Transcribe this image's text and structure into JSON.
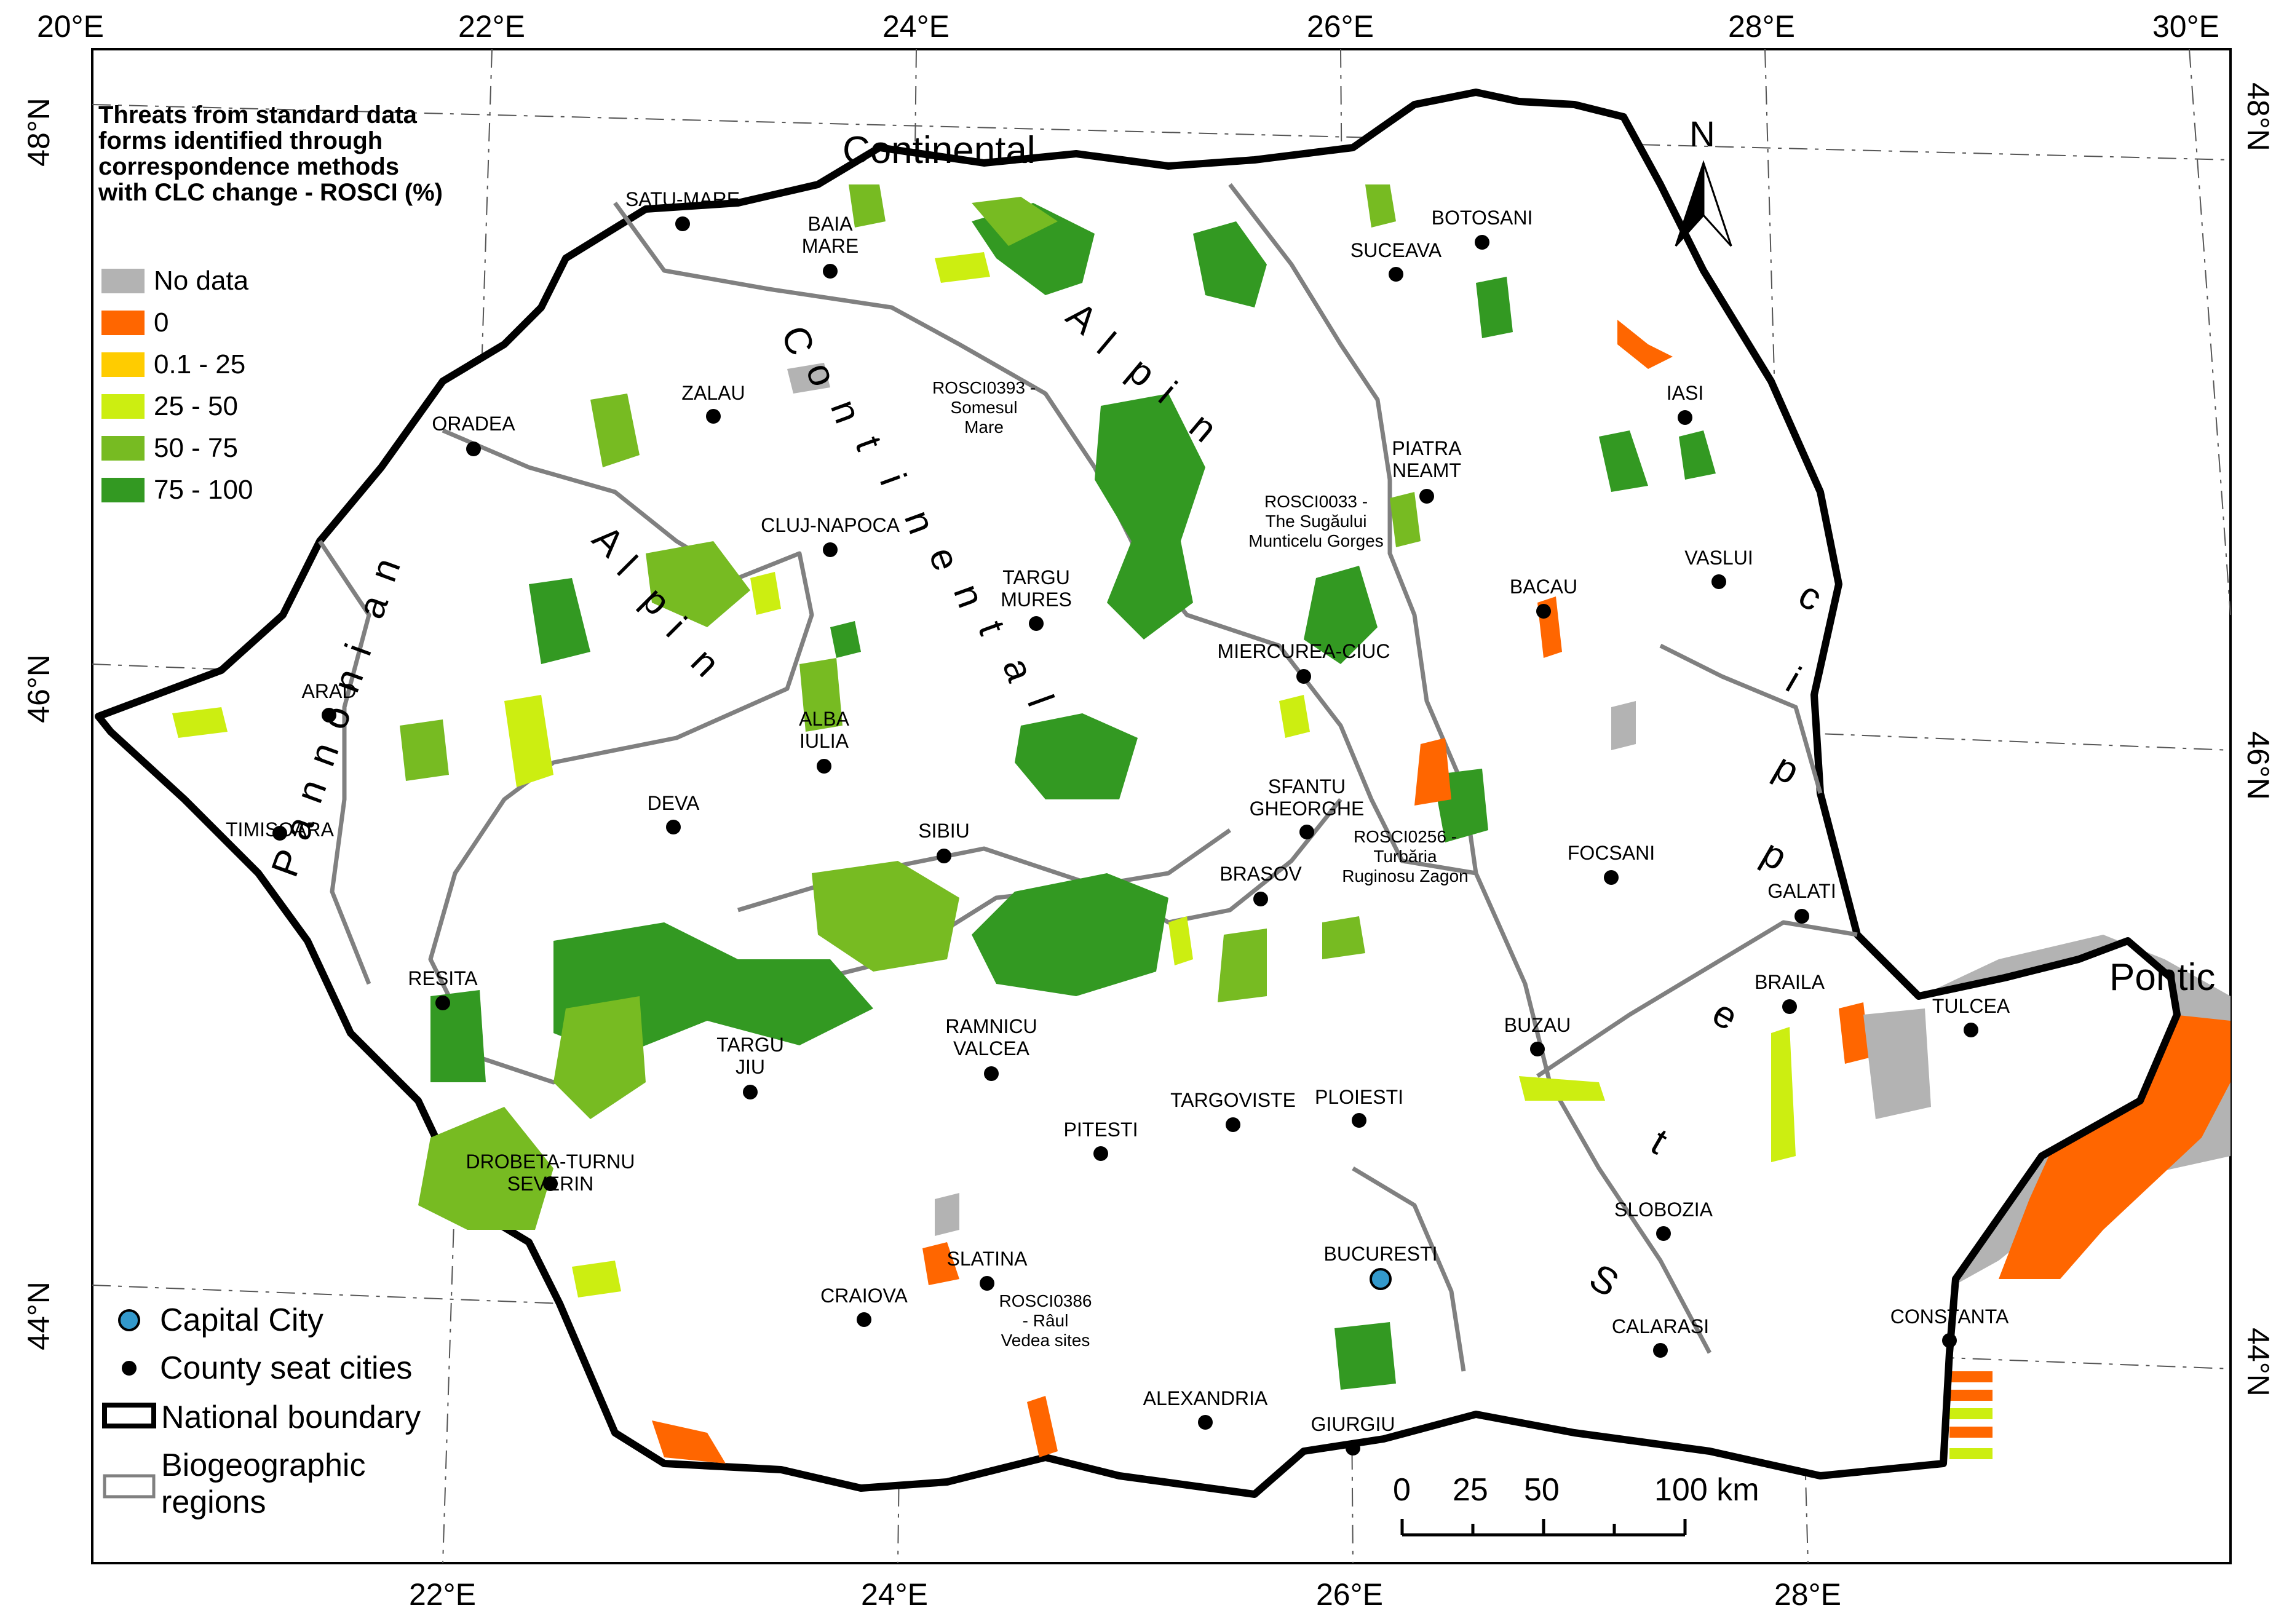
{
  "graticule": {
    "top_labels": [
      "20°E",
      "22°E",
      "24°E",
      "26°E",
      "28°E",
      "30°E"
    ],
    "bottom_labels": [
      "22°E",
      "24°E",
      "26°E",
      "28°E"
    ],
    "left_labels": [
      "48°N",
      "46°N",
      "44°N"
    ],
    "right_labels": [
      "48°N",
      "46°N",
      "44°N"
    ]
  },
  "legend": {
    "title_lines": [
      "Threats from standard data",
      "forms identified through",
      "correspondence methods",
      "with CLC change - ROSCI (%)"
    ],
    "classes": [
      {
        "label": "No data",
        "color": "#b3b3b3"
      },
      {
        "label": "0",
        "color": "#ff6600"
      },
      {
        "label": "0.1 - 25",
        "color": "#ffcc00"
      },
      {
        "label": "25 - 50",
        "color": "#ccee11"
      },
      {
        "label": "50 - 75",
        "color": "#77bb22"
      },
      {
        "label": "75 - 100",
        "color": "#339922"
      }
    ],
    "symbols": {
      "capital": "Capital City",
      "county_seat": "County seat cities",
      "national_boundary": "National boundary",
      "biogeo_line1": "Biogeographic",
      "biogeo_line2": "regions"
    },
    "capital_color": "#3399cc"
  },
  "north_arrow": {
    "label": "N"
  },
  "scale_bar": {
    "labels": [
      "0",
      "25",
      "50",
      "100 km"
    ]
  },
  "regions": {
    "continental_top": "Continental",
    "pontic": "Pontic",
    "pannonian": "Pannonian",
    "alpine_west": "Alpin",
    "alpine_east": "Alpin",
    "continental_center": "Continental",
    "steppic": "Steppic"
  },
  "cities": [
    {
      "name": "SATU-MARE"
    },
    {
      "name": "BAIA MARE"
    },
    {
      "name": "BOTOSANI"
    },
    {
      "name": "SUCEAVA"
    },
    {
      "name": "ZALAU"
    },
    {
      "name": "ORADEA"
    },
    {
      "name": "IASI"
    },
    {
      "name": "PIATRA NEAMT"
    },
    {
      "name": "CLUJ-NAPOCA"
    },
    {
      "name": "TARGU MURES"
    },
    {
      "name": "VASLUI"
    },
    {
      "name": "BACAU"
    },
    {
      "name": "MIERCUREA-CIUC"
    },
    {
      "name": "ARAD"
    },
    {
      "name": "ALBA IULIA"
    },
    {
      "name": "DEVA"
    },
    {
      "name": "TIMISOARA"
    },
    {
      "name": "SIBIU"
    },
    {
      "name": "SFANTU GHEORGHE"
    },
    {
      "name": "FOCSANI"
    },
    {
      "name": "BRASOV"
    },
    {
      "name": "GALATI"
    },
    {
      "name": "RESITA"
    },
    {
      "name": "BRAILA"
    },
    {
      "name": "TULCEA"
    },
    {
      "name": "RAMNICU VALCEA"
    },
    {
      "name": "BUZAU"
    },
    {
      "name": "TARGU JIU"
    },
    {
      "name": "TARGOVISTE"
    },
    {
      "name": "PLOIESTI"
    },
    {
      "name": "PITESTI"
    },
    {
      "name": "DROBETA-TURNU SEVERIN"
    },
    {
      "name": "SLOBOZIA"
    },
    {
      "name": "SLATINA"
    },
    {
      "name": "CRAIOVA"
    },
    {
      "name": "CALARASI"
    },
    {
      "name": "CONSTANTA"
    },
    {
      "name": "ALEXANDRIA"
    },
    {
      "name": "GIURGIU"
    },
    {
      "name": "BUCURESTI"
    }
  ],
  "site_labels": [
    {
      "lines": [
        "ROSCI0393 -",
        "Somesul",
        "Mare"
      ]
    },
    {
      "lines": [
        "ROSCI0033 -",
        "The Sugăului",
        "Munticelu Gorges"
      ]
    },
    {
      "lines": [
        "ROSCI0256 -",
        "Turbăria",
        "Ruginosu Zagon"
      ]
    },
    {
      "lines": [
        "ROSCI0386",
        "- Râul",
        "Vedea sites"
      ]
    }
  ]
}
